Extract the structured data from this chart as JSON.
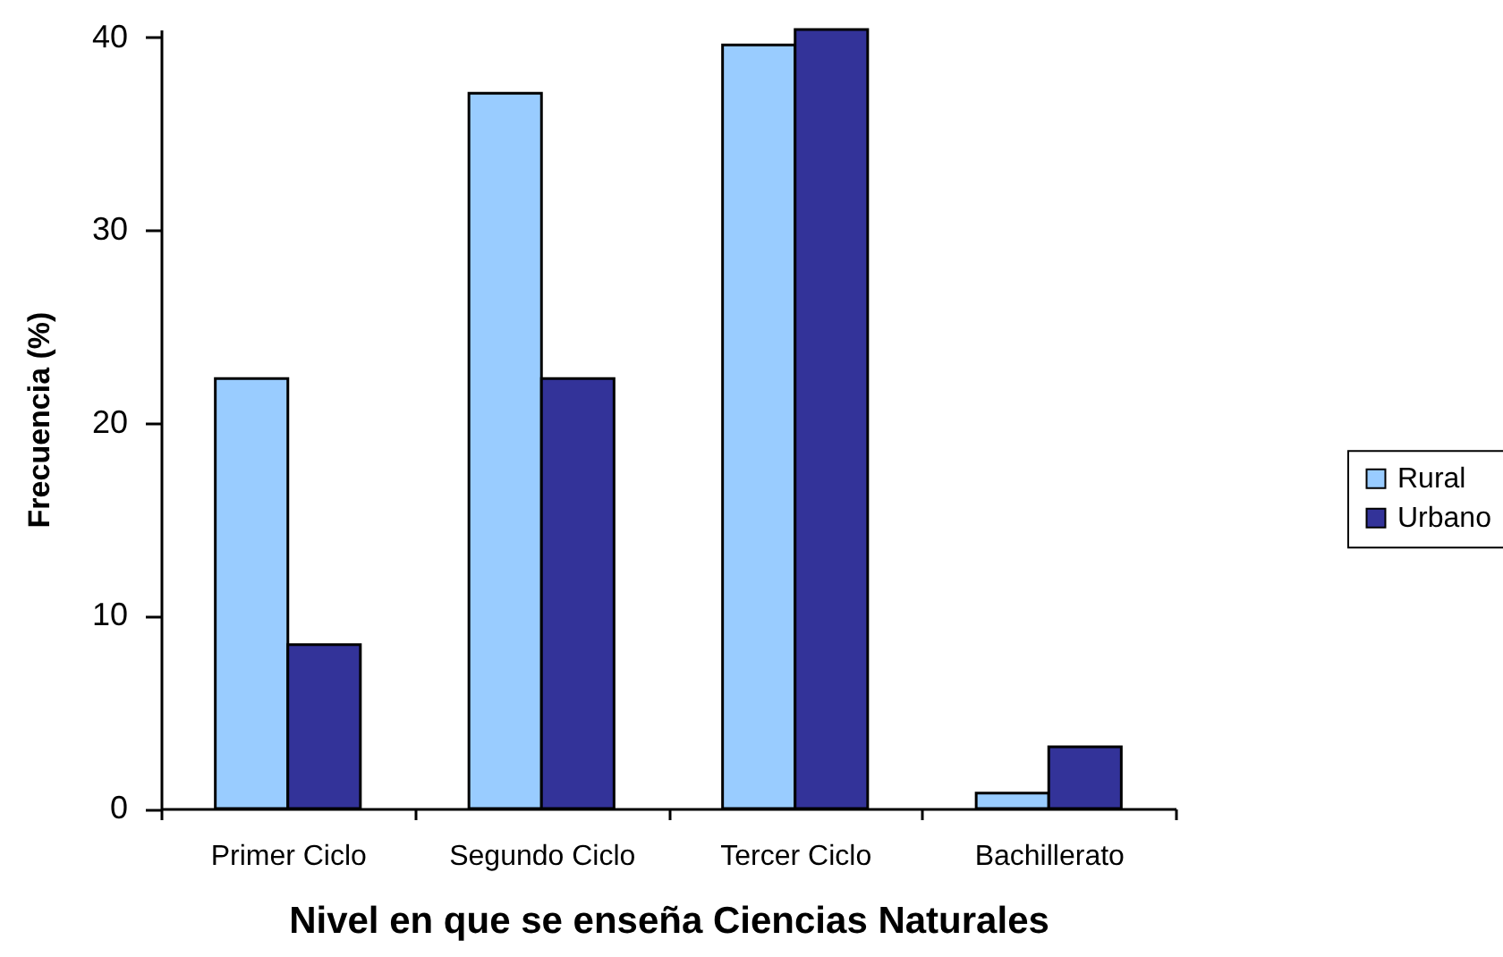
{
  "chart_data": {
    "type": "bar",
    "categories": [
      "Primer Ciclo",
      "Segundo Ciclo",
      "Tercer Ciclo",
      "Bachillerato"
    ],
    "series": [
      {
        "name": "Rural",
        "color": "#99ccff",
        "values": [
          22.3,
          37.1,
          39.6,
          0.8
        ]
      },
      {
        "name": "Urbano",
        "color": "#333399",
        "values": [
          8.5,
          22.3,
          40.4,
          3.2
        ]
      }
    ],
    "xlabel": "Nivel en que se enseña Ciencias Naturales",
    "ylabel": "Frecuencia (%)",
    "ylim": [
      0,
      40.4
    ],
    "yticks": [
      0,
      10,
      20,
      30,
      40
    ],
    "grid": false,
    "legend": "right"
  }
}
